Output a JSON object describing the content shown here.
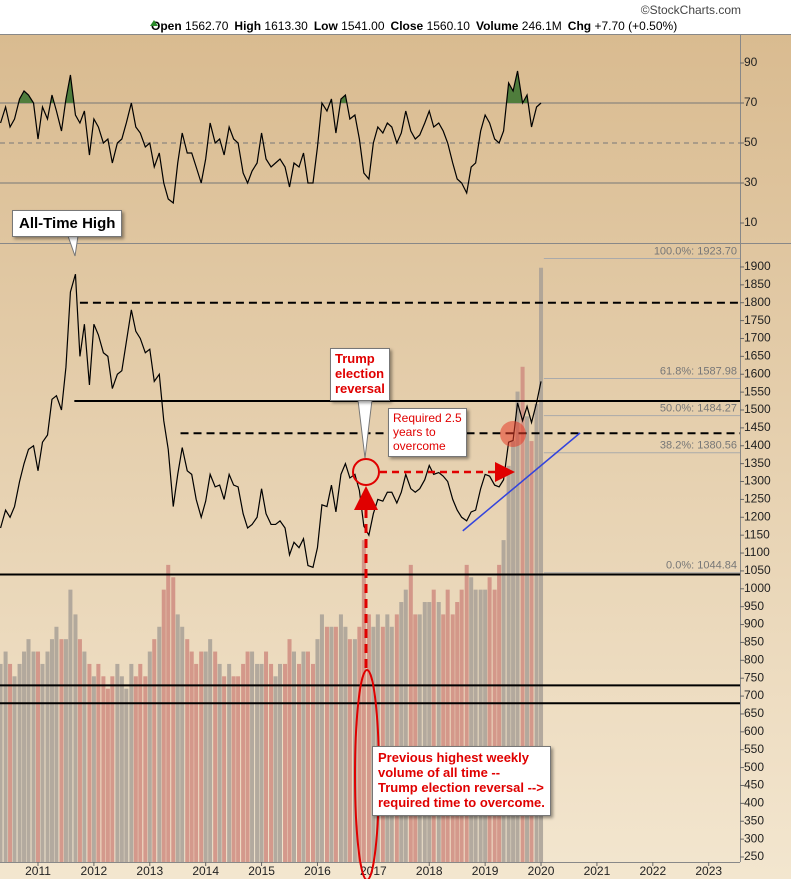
{
  "header": {
    "source": "©StockCharts.com",
    "quote": [
      {
        "label": "Open",
        "value": "1562.70"
      },
      {
        "label": "High",
        "value": "1613.30"
      },
      {
        "label": "Low",
        "value": "1541.00"
      },
      {
        "label": "Close",
        "value": "1560.10"
      },
      {
        "label": "Volume",
        "value": "246.1M"
      },
      {
        "label": "Chg",
        "value": "+7.70 (+0.50%)"
      }
    ]
  },
  "annotations": {
    "all_time_high": "All-Time High",
    "election": [
      "Trump",
      "election",
      "reversal"
    ],
    "required": [
      "Required 2.5",
      "years to",
      "overcome"
    ],
    "volume_note": [
      "Previous highest weekly",
      "volume of all time --",
      "Trump election reversal -->",
      "required time to overcome."
    ]
  },
  "chart_data": [
    {
      "type": "line",
      "color": "#000000",
      "fill_color": "#4f7d3c",
      "overbought": 70,
      "xlim": [
        2010.32,
        2023.56
      ],
      "ylim": [
        0,
        104
      ],
      "yticks": [
        10,
        30,
        50,
        70,
        90
      ],
      "reference_lines": [
        {
          "value": 70,
          "dashed": false
        },
        {
          "value": 50,
          "dashed": true
        },
        {
          "value": 30,
          "dashed": false
        }
      ],
      "x": [
        2010.33,
        2010.42,
        2010.5,
        2010.58,
        2010.67,
        2010.75,
        2010.83,
        2010.92,
        2011.0,
        2011.08,
        2011.17,
        2011.25,
        2011.33,
        2011.42,
        2011.5,
        2011.58,
        2011.67,
        2011.75,
        2011.83,
        2011.92,
        2012.0,
        2012.08,
        2012.17,
        2012.25,
        2012.33,
        2012.42,
        2012.5,
        2012.58,
        2012.67,
        2012.75,
        2012.83,
        2012.92,
        2013.0,
        2013.08,
        2013.17,
        2013.25,
        2013.33,
        2013.42,
        2013.5,
        2013.58,
        2013.67,
        2013.75,
        2013.83,
        2013.92,
        2014.0,
        2014.08,
        2014.17,
        2014.25,
        2014.33,
        2014.42,
        2014.5,
        2014.58,
        2014.67,
        2014.75,
        2014.83,
        2014.92,
        2015.0,
        2015.08,
        2015.17,
        2015.25,
        2015.33,
        2015.42,
        2015.5,
        2015.58,
        2015.67,
        2015.75,
        2015.83,
        2015.92,
        2016.0,
        2016.08,
        2016.17,
        2016.25,
        2016.33,
        2016.42,
        2016.5,
        2016.58,
        2016.67,
        2016.75,
        2016.83,
        2016.92,
        2017.0,
        2017.08,
        2017.17,
        2017.25,
        2017.33,
        2017.42,
        2017.5,
        2017.58,
        2017.67,
        2017.75,
        2017.83,
        2017.92,
        2018.0,
        2018.08,
        2018.17,
        2018.25,
        2018.33,
        2018.42,
        2018.5,
        2018.58,
        2018.67,
        2018.75,
        2018.83,
        2018.92,
        2019.0,
        2019.08,
        2019.17,
        2019.25,
        2019.33,
        2019.42,
        2019.5,
        2019.58,
        2019.67,
        2019.75,
        2019.83,
        2019.92,
        2020.0
      ],
      "values": [
        60,
        68,
        58,
        62,
        72,
        76,
        74,
        70,
        52,
        68,
        62,
        74,
        66,
        56,
        72,
        84,
        64,
        60,
        66,
        44,
        62,
        58,
        50,
        52,
        40,
        50,
        52,
        60,
        70,
        58,
        55,
        48,
        50,
        38,
        45,
        30,
        22,
        20,
        40,
        55,
        45,
        45,
        38,
        30,
        42,
        60,
        50,
        52,
        44,
        58,
        52,
        50,
        35,
        30,
        36,
        40,
        55,
        42,
        38,
        40,
        42,
        38,
        28,
        40,
        38,
        45,
        30,
        30,
        48,
        70,
        66,
        72,
        55,
        72,
        74,
        62,
        64,
        52,
        35,
        32,
        50,
        58,
        55,
        60,
        58,
        50,
        55,
        66,
        56,
        52,
        54,
        60,
        66,
        58,
        60,
        56,
        50,
        40,
        32,
        30,
        25,
        38,
        40,
        56,
        64,
        60,
        52,
        50,
        56,
        80,
        76,
        86,
        70,
        74,
        58,
        68,
        70
      ]
    },
    {
      "type": "line",
      "color": "#000000",
      "xlim": [
        2010.32,
        2023.56
      ],
      "ylim": [
        236,
        1967
      ],
      "xticks": [
        2011,
        2012,
        2013,
        2014,
        2015,
        2016,
        2017,
        2018,
        2019,
        2020,
        2021,
        2022,
        2023
      ],
      "yticks": [
        250,
        300,
        350,
        400,
        450,
        500,
        550,
        600,
        650,
        700,
        750,
        800,
        850,
        900,
        950,
        1000,
        1050,
        1100,
        1150,
        1200,
        1250,
        1300,
        1350,
        1400,
        1450,
        1500,
        1550,
        1600,
        1650,
        1700,
        1750,
        1800,
        1850,
        1900
      ],
      "x": [
        2010.33,
        2010.42,
        2010.5,
        2010.58,
        2010.67,
        2010.75,
        2010.83,
        2010.92,
        2011.0,
        2011.08,
        2011.17,
        2011.25,
        2011.33,
        2011.42,
        2011.5,
        2011.58,
        2011.67,
        2011.75,
        2011.83,
        2011.92,
        2012.0,
        2012.08,
        2012.17,
        2012.25,
        2012.33,
        2012.42,
        2012.5,
        2012.58,
        2012.67,
        2012.75,
        2012.83,
        2012.92,
        2013.0,
        2013.08,
        2013.17,
        2013.25,
        2013.33,
        2013.42,
        2013.5,
        2013.58,
        2013.67,
        2013.75,
        2013.83,
        2013.92,
        2014.0,
        2014.08,
        2014.17,
        2014.25,
        2014.33,
        2014.42,
        2014.5,
        2014.58,
        2014.67,
        2014.75,
        2014.83,
        2014.92,
        2015.0,
        2015.08,
        2015.17,
        2015.25,
        2015.33,
        2015.42,
        2015.5,
        2015.58,
        2015.67,
        2015.75,
        2015.83,
        2015.92,
        2016.0,
        2016.08,
        2016.17,
        2016.25,
        2016.33,
        2016.42,
        2016.5,
        2016.58,
        2016.67,
        2016.75,
        2016.83,
        2016.92,
        2017.0,
        2017.08,
        2017.17,
        2017.25,
        2017.33,
        2017.42,
        2017.5,
        2017.58,
        2017.67,
        2017.75,
        2017.83,
        2017.92,
        2018.0,
        2018.08,
        2018.17,
        2018.25,
        2018.33,
        2018.42,
        2018.5,
        2018.58,
        2018.67,
        2018.75,
        2018.83,
        2018.92,
        2019.0,
        2019.08,
        2019.17,
        2019.25,
        2019.33,
        2019.42,
        2019.5,
        2019.58,
        2019.67,
        2019.75,
        2019.83,
        2019.92,
        2020.0
      ],
      "values": [
        1170,
        1220,
        1200,
        1230,
        1300,
        1350,
        1390,
        1400,
        1330,
        1410,
        1430,
        1530,
        1540,
        1500,
        1620,
        1830,
        1880,
        1650,
        1740,
        1570,
        1740,
        1710,
        1660,
        1650,
        1560,
        1600,
        1610,
        1690,
        1780,
        1720,
        1700,
        1660,
        1670,
        1580,
        1600,
        1470,
        1390,
        1230,
        1320,
        1395,
        1330,
        1320,
        1250,
        1200,
        1245,
        1320,
        1285,
        1290,
        1250,
        1320,
        1290,
        1285,
        1210,
        1170,
        1180,
        1200,
        1280,
        1210,
        1180,
        1180,
        1190,
        1170,
        1095,
        1130,
        1115,
        1140,
        1065,
        1060,
        1115,
        1235,
        1230,
        1290,
        1215,
        1320,
        1350,
        1310,
        1320,
        1275,
        1175,
        1150,
        1210,
        1250,
        1245,
        1270,
        1270,
        1240,
        1270,
        1320,
        1280,
        1270,
        1280,
        1305,
        1345,
        1320,
        1325,
        1315,
        1300,
        1250,
        1220,
        1200,
        1190,
        1215,
        1220,
        1280,
        1320,
        1315,
        1290,
        1285,
        1305,
        1410,
        1415,
        1520,
        1470,
        1510,
        1465,
        1520,
        1580
      ],
      "volume_lim": [
        0,
        250
      ],
      "volume_up_color": "#a8a096",
      "volume_down_color": "#cf8c80",
      "volume": [
        80,
        85,
        80,
        75,
        80,
        85,
        90,
        85,
        85,
        80,
        85,
        90,
        95,
        90,
        90,
        110,
        100,
        90,
        85,
        80,
        75,
        80,
        75,
        70,
        75,
        80,
        75,
        70,
        80,
        75,
        80,
        75,
        85,
        90,
        95,
        110,
        120,
        115,
        100,
        95,
        90,
        85,
        80,
        85,
        85,
        90,
        85,
        80,
        75,
        80,
        75,
        75,
        80,
        85,
        85,
        80,
        80,
        85,
        80,
        75,
        80,
        80,
        90,
        85,
        80,
        85,
        85,
        80,
        90,
        100,
        95,
        95,
        95,
        100,
        95,
        90,
        90,
        95,
        130,
        100,
        95,
        100,
        95,
        100,
        95,
        100,
        105,
        110,
        120,
        100,
        100,
        105,
        105,
        110,
        105,
        100,
        110,
        100,
        105,
        110,
        120,
        115,
        110,
        110,
        110,
        115,
        110,
        120,
        130,
        160,
        170,
        190,
        200,
        180,
        170,
        185,
        240
      ],
      "levels": [
        {
          "value": 1800,
          "from": 2011.75,
          "dashed": true
        },
        {
          "value": 1525,
          "from": 2011.65,
          "dashed": false
        },
        {
          "value": 1435,
          "from": 2013.55,
          "dashed": true
        },
        {
          "value": 1040,
          "from": 2010.32,
          "dashed": false
        },
        {
          "value": 730,
          "from": 2010.32,
          "dashed": false
        },
        {
          "value": 680,
          "from": 2010.32,
          "dashed": false
        }
      ],
      "trendline": {
        "x": [
          2018.6,
          2020.7
        ],
        "values": [
          1162,
          1436
        ],
        "color": "#3344dd"
      },
      "fib_from": 2020.05,
      "fib": [
        {
          "value": 1923.7,
          "label": "100.0%: 1923.70"
        },
        {
          "value": 1587.98,
          "label": "61.8%: 1587.98"
        },
        {
          "value": 1484.27,
          "label": "50.0%: 1484.27"
        },
        {
          "value": 1380.56,
          "label": "38.2%: 1380.56"
        },
        {
          "value": 1044.84,
          "label": "0.0%: 1044.84"
        }
      ]
    }
  ]
}
